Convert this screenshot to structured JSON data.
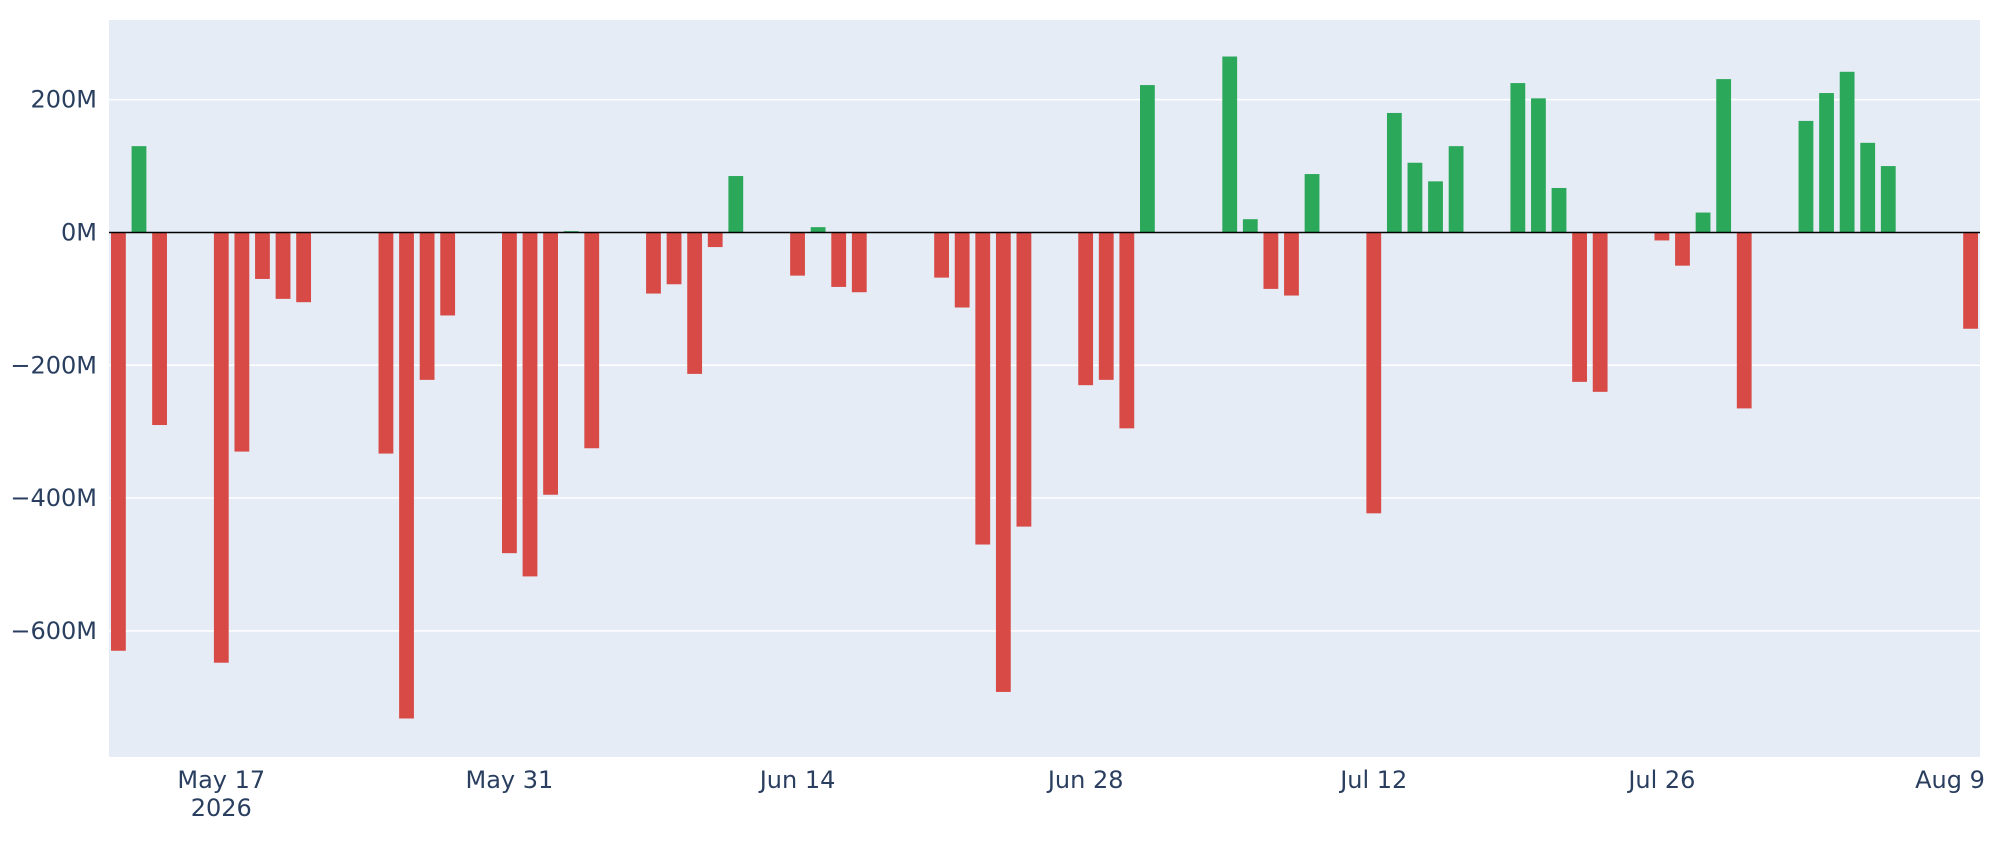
{
  "chart_data": {
    "type": "bar",
    "title": "",
    "xlabel": "",
    "ylabel": "",
    "xlim": [
      "2026-05-12",
      "2026-08-11"
    ],
    "ylim": [
      -790,
      320
    ],
    "y_ticks": [
      {
        "value": 200,
        "label": "200M"
      },
      {
        "value": 0,
        "label": "0M"
      },
      {
        "value": -200,
        "label": "−200M"
      },
      {
        "value": -400,
        "label": "−400M"
      },
      {
        "value": -600,
        "label": "−600M"
      }
    ],
    "x_ticks": [
      {
        "date": "2026-05-17",
        "label": "May 17",
        "sublabel": "2026"
      },
      {
        "date": "2026-05-31",
        "label": "May 31"
      },
      {
        "date": "2026-06-14",
        "label": "Jun 14"
      },
      {
        "date": "2026-06-28",
        "label": "Jun 28"
      },
      {
        "date": "2026-07-12",
        "label": "Jul 12"
      },
      {
        "date": "2026-07-26",
        "label": "Jul 26"
      },
      {
        "date": "2026-08-09",
        "label": "Aug 9"
      }
    ],
    "grid": true,
    "colors": {
      "positive": "#2ca85a",
      "negative": "#d84a45",
      "plot_bg": "#e5ecf6",
      "grid": "#ffffff",
      "zero_line": "#000000",
      "text": "#2a3f5f"
    },
    "bars": [
      {
        "date": "2026-05-12",
        "value": -630
      },
      {
        "date": "2026-05-13",
        "value": 130
      },
      {
        "date": "2026-05-14",
        "value": -290
      },
      {
        "date": "2026-05-17",
        "value": -648
      },
      {
        "date": "2026-05-18",
        "value": -330
      },
      {
        "date": "2026-05-19",
        "value": -70
      },
      {
        "date": "2026-05-20",
        "value": -100
      },
      {
        "date": "2026-05-21",
        "value": -105
      },
      {
        "date": "2026-05-25",
        "value": -333
      },
      {
        "date": "2026-05-26",
        "value": -732
      },
      {
        "date": "2026-05-27",
        "value": -222
      },
      {
        "date": "2026-05-28",
        "value": -125
      },
      {
        "date": "2026-05-31",
        "value": -483
      },
      {
        "date": "2026-06-01",
        "value": -518
      },
      {
        "date": "2026-06-02",
        "value": -395
      },
      {
        "date": "2026-06-03",
        "value": 2
      },
      {
        "date": "2026-06-04",
        "value": -325
      },
      {
        "date": "2026-06-07",
        "value": -92
      },
      {
        "date": "2026-06-08",
        "value": -78
      },
      {
        "date": "2026-06-09",
        "value": -213
      },
      {
        "date": "2026-06-10",
        "value": -22
      },
      {
        "date": "2026-06-11",
        "value": 85
      },
      {
        "date": "2026-06-14",
        "value": -65
      },
      {
        "date": "2026-06-15",
        "value": 8
      },
      {
        "date": "2026-06-16",
        "value": -82
      },
      {
        "date": "2026-06-17",
        "value": -90
      },
      {
        "date": "2026-06-21",
        "value": -68
      },
      {
        "date": "2026-06-22",
        "value": -113
      },
      {
        "date": "2026-06-23",
        "value": -470
      },
      {
        "date": "2026-06-24",
        "value": -692
      },
      {
        "date": "2026-06-25",
        "value": -443
      },
      {
        "date": "2026-06-28",
        "value": -230
      },
      {
        "date": "2026-06-29",
        "value": -222
      },
      {
        "date": "2026-06-30",
        "value": -295
      },
      {
        "date": "2026-07-01",
        "value": 222
      },
      {
        "date": "2026-07-05",
        "value": 265
      },
      {
        "date": "2026-07-06",
        "value": 20
      },
      {
        "date": "2026-07-07",
        "value": -85
      },
      {
        "date": "2026-07-08",
        "value": -95
      },
      {
        "date": "2026-07-09",
        "value": 88
      },
      {
        "date": "2026-07-12",
        "value": -423
      },
      {
        "date": "2026-07-13",
        "value": 180
      },
      {
        "date": "2026-07-14",
        "value": 105
      },
      {
        "date": "2026-07-15",
        "value": 77
      },
      {
        "date": "2026-07-16",
        "value": 130
      },
      {
        "date": "2026-07-19",
        "value": 225
      },
      {
        "date": "2026-07-20",
        "value": 202
      },
      {
        "date": "2026-07-21",
        "value": 67
      },
      {
        "date": "2026-07-22",
        "value": -225
      },
      {
        "date": "2026-07-23",
        "value": -240
      },
      {
        "date": "2026-07-26",
        "value": -12
      },
      {
        "date": "2026-07-27",
        "value": -50
      },
      {
        "date": "2026-07-28",
        "value": 30
      },
      {
        "date": "2026-07-29",
        "value": 231
      },
      {
        "date": "2026-07-30",
        "value": -265
      },
      {
        "date": "2026-08-02",
        "value": 168
      },
      {
        "date": "2026-08-03",
        "value": 210
      },
      {
        "date": "2026-08-04",
        "value": 242
      },
      {
        "date": "2026-08-05",
        "value": 135
      },
      {
        "date": "2026-08-06",
        "value": 100
      },
      {
        "date": "2026-08-10",
        "value": -145
      }
    ]
  }
}
